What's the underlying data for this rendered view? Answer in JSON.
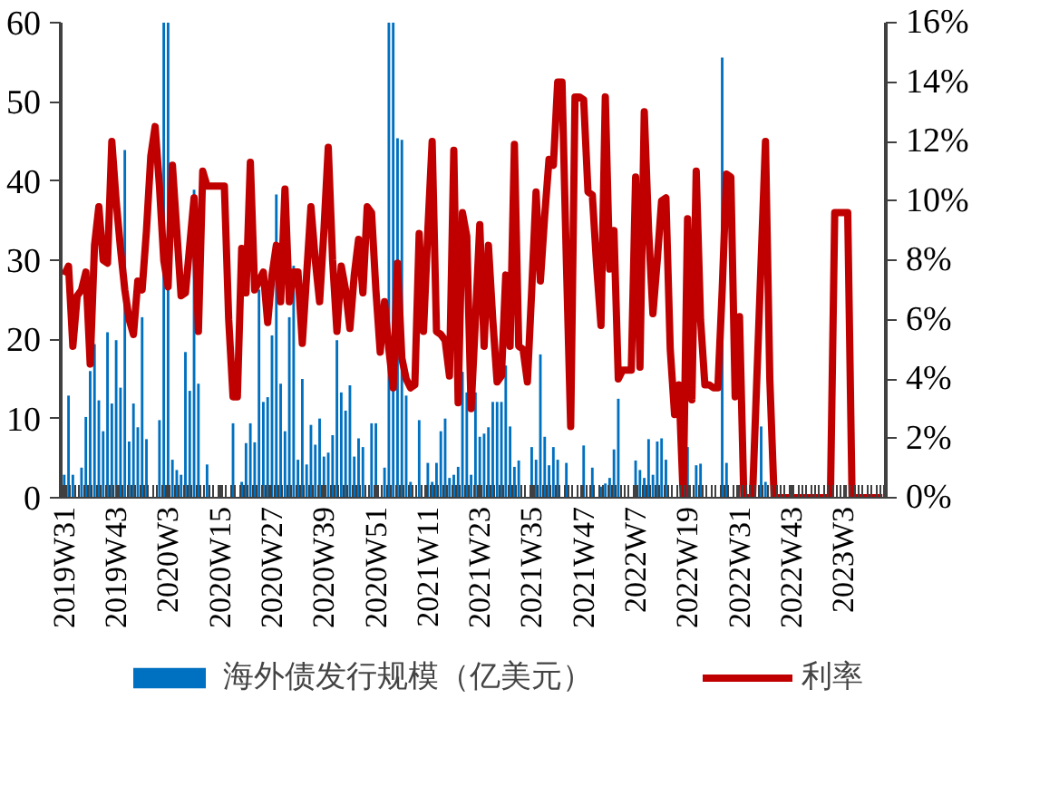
{
  "chart_data": {
    "type": "bar",
    "legend": "bottom",
    "categories": [
      "2019W31",
      null,
      null,
      null,
      null,
      null,
      null,
      null,
      null,
      null,
      null,
      null,
      "2019W43",
      null,
      null,
      null,
      null,
      null,
      null,
      null,
      null,
      null,
      null,
      null,
      "2020W3",
      null,
      null,
      null,
      null,
      null,
      null,
      null,
      null,
      null,
      null,
      null,
      "2020W15",
      null,
      null,
      null,
      null,
      null,
      null,
      null,
      null,
      null,
      null,
      null,
      "2020W27",
      null,
      null,
      null,
      null,
      null,
      null,
      null,
      null,
      null,
      null,
      null,
      "2020W39",
      null,
      null,
      null,
      null,
      null,
      null,
      null,
      null,
      null,
      null,
      null,
      "2020W51",
      null,
      null,
      null,
      null,
      null,
      null,
      null,
      null,
      null,
      null,
      null,
      "2021W11",
      null,
      null,
      null,
      null,
      null,
      null,
      null,
      null,
      null,
      null,
      null,
      "2021W23",
      null,
      null,
      null,
      null,
      null,
      null,
      null,
      null,
      null,
      null,
      null,
      "2021W35",
      null,
      null,
      null,
      null,
      null,
      null,
      null,
      null,
      null,
      null,
      null,
      "2021W47",
      null,
      null,
      null,
      null,
      null,
      null,
      null,
      null,
      null,
      null,
      null,
      "2022W7",
      null,
      null,
      null,
      null,
      null,
      null,
      null,
      null,
      null,
      null,
      null,
      "2022W19",
      null,
      null,
      null,
      null,
      null,
      null,
      null,
      null,
      null,
      null,
      null,
      "2022W31",
      null,
      null,
      null,
      null,
      null,
      null,
      null,
      null,
      null,
      null,
      null,
      "2022W43",
      null,
      null,
      null,
      null,
      null,
      null,
      null,
      null,
      null,
      null,
      null,
      "2023W3",
      null,
      null,
      null,
      null,
      null,
      null,
      null,
      null,
      null
    ],
    "ylim": [
      0,
      60
    ],
    "yticks": [
      0,
      10,
      20,
      30,
      40,
      50,
      60
    ],
    "y2lim": [
      0,
      16
    ],
    "y2ticks": [
      {
        "value": 0,
        "label": "0%"
      },
      {
        "value": 2,
        "label": "2%"
      },
      {
        "value": 4,
        "label": "4%"
      },
      {
        "value": 6,
        "label": "6%"
      },
      {
        "value": 8,
        "label": "8%"
      },
      {
        "value": 10,
        "label": "10%"
      },
      {
        "value": 12,
        "label": "12%"
      },
      {
        "value": 14,
        "label": "14%"
      },
      {
        "value": 16,
        "label": "16%"
      }
    ],
    "series": [
      {
        "name": "海外债发行规模（亿美元）",
        "color": "#0070c0",
        "values": [
          2.9,
          12.9,
          2.9,
          0,
          3.8,
          10.2,
          16,
          19.4,
          12.3,
          8.4,
          20.9,
          11.9,
          19.9,
          13.9,
          43.9,
          7.1,
          11.9,
          8.9,
          22.8,
          7.4,
          0,
          0,
          9.8,
          60,
          60,
          4.8,
          3.5,
          2.9,
          18.4,
          13.5,
          38.9,
          14.4,
          0,
          4.2,
          0,
          0,
          0,
          0,
          0,
          9.4,
          0,
          2,
          6.9,
          9.4,
          7.0,
          26.3,
          12.1,
          12.7,
          20.5,
          38.3,
          14.4,
          8.4,
          22.8,
          29.3,
          4.8,
          15.0,
          4.2,
          9.2,
          6.7,
          10,
          5.2,
          5.7,
          7.9,
          19.9,
          13.3,
          11,
          14.2,
          5.2,
          7.5,
          6.4,
          0,
          9.4,
          9.4,
          0,
          3.8,
          60,
          60,
          45.4,
          45.2,
          12.9,
          2,
          0,
          9.8,
          0,
          4.4,
          2,
          4.4,
          8.4,
          10,
          2.5,
          2.9,
          3.9,
          15.9,
          13.3,
          2.9,
          13.3,
          7.7,
          8.1,
          8.9,
          12.1,
          12.1,
          12.1,
          16.7,
          9.0,
          3.9,
          4.7,
          0,
          0,
          6.4,
          4.8,
          18.1,
          7.7,
          4.1,
          6.4,
          4.8,
          0,
          4.4,
          0,
          0,
          0,
          6.6,
          0,
          3.8,
          0,
          1.4,
          1.8,
          2.5,
          6.1,
          12.5,
          0,
          0,
          0,
          4.7,
          3.5,
          2.5,
          7.4,
          2.9,
          7.1,
          7.5,
          4.8,
          0,
          0,
          0,
          0,
          6.4,
          0,
          4.1,
          4.3,
          0,
          0,
          0,
          0,
          55.6,
          4.4,
          0,
          0,
          0,
          0,
          0,
          0,
          0,
          9.0,
          2.0,
          0,
          0,
          0,
          0,
          0,
          0,
          0,
          0,
          0,
          0,
          0,
          0,
          0,
          0,
          0,
          0,
          0,
          0,
          0,
          0,
          0,
          0,
          0,
          0,
          0,
          0,
          0
        ]
      },
      {
        "name": "利率",
        "type": "line",
        "axis": "y2",
        "color": "#c00000",
        "values": [
          7.5,
          7.8,
          5.1,
          6.8,
          7.0,
          7.6,
          4.5,
          8.5,
          9.8,
          8.0,
          7.9,
          12.0,
          10.0,
          8.4,
          7.0,
          6.0,
          5.5,
          7.3,
          7.0,
          9.0,
          11.5,
          12.5,
          10.5,
          8.0,
          7.1,
          11.2,
          9.0,
          6.8,
          6.9,
          8.5,
          10.1,
          5.6,
          11.0,
          10.5,
          10.5,
          10.5,
          10.5,
          10.5,
          6.0,
          3.4,
          3.4,
          8.4,
          6.9,
          11.3,
          7.0,
          7.3,
          7.6,
          5.9,
          7.5,
          8.5,
          6.6,
          10.4,
          6.6,
          7.6,
          7.6,
          5.2,
          7.5,
          9.8,
          8.0,
          6.6,
          9.0,
          11.8,
          8.0,
          5.6,
          7.8,
          7.0,
          5.7,
          7.5,
          8.7,
          6.9,
          9.8,
          9.6,
          7.0,
          4.9,
          6.6,
          5.0,
          3.7,
          7.9,
          4.7,
          4.0,
          3.7,
          3.8,
          8.9,
          5.6,
          9.0,
          12.0,
          5.6,
          5.5,
          5.3,
          4.1,
          11.7,
          3.2,
          9.6,
          8.8,
          3.0,
          6.0,
          9.2,
          5.1,
          8.5,
          6.0,
          3.9,
          4.1,
          7.5,
          5.1,
          11.9,
          5.1,
          5.0,
          3.9,
          7.0,
          10.3,
          7.3,
          9.5,
          11.4,
          11.2,
          14.0,
          14.0,
          8.0,
          2.4,
          13.5,
          13.5,
          13.4,
          10.3,
          10.2,
          7.8,
          5.8,
          13.5,
          7.7,
          9.0,
          4.0,
          4.3,
          4.3,
          4.3,
          10.8,
          4.4,
          13.0,
          9.0,
          6.2,
          8.0,
          10.0,
          10.1,
          5.0,
          2.8,
          3.8,
          0,
          9.4,
          3.3,
          11.0,
          6.0,
          3.8,
          3.8,
          3.7,
          3.7,
          7.0,
          10.9,
          10.8,
          3.4,
          6.1,
          0,
          0,
          0,
          4.0,
          8.0,
          12.0,
          4.0,
          0,
          0,
          0,
          0,
          0,
          0,
          0,
          0,
          0,
          0,
          0,
          0,
          0,
          0,
          9.6,
          9.6,
          9.6,
          9.6,
          0,
          0,
          0,
          0,
          0,
          0,
          0,
          0
        ]
      }
    ]
  }
}
